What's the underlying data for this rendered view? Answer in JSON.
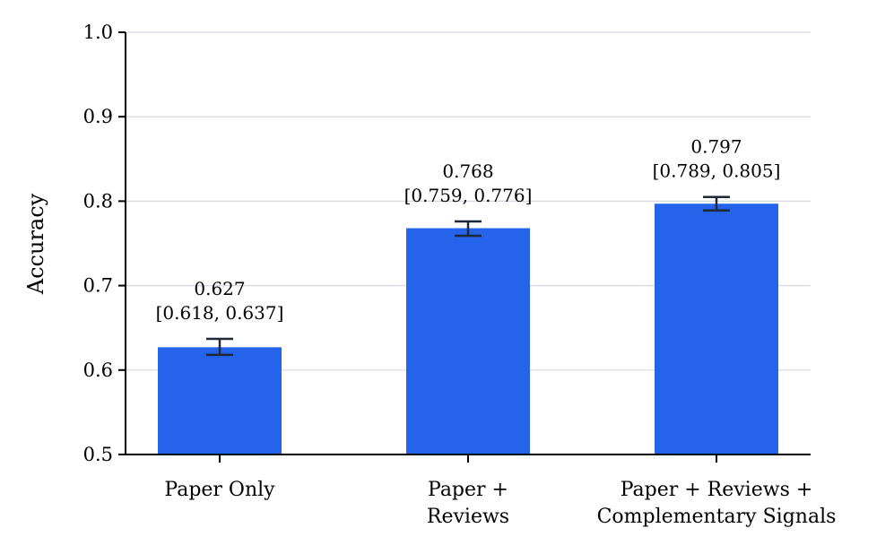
{
  "chart_data": {
    "type": "bar",
    "title": "",
    "xlabel": "",
    "ylabel": "Accuracy",
    "ylim": [
      0.5,
      1.0
    ],
    "yticks": [
      "0.5",
      "0.6",
      "0.7",
      "0.8",
      "0.9",
      "1.0"
    ],
    "grid": "horizontal",
    "categories": [
      [
        "Paper Only"
      ],
      [
        "Paper +",
        "Reviews"
      ],
      [
        "Paper + Reviews +",
        "Complementary Signals"
      ]
    ],
    "values": [
      0.627,
      0.768,
      0.797
    ],
    "ci_low": [
      0.618,
      0.759,
      0.789
    ],
    "ci_high": [
      0.637,
      0.776,
      0.805
    ],
    "value_labels": [
      "0.627",
      "0.768",
      "0.797"
    ],
    "ci_labels": [
      "[0.618, 0.637]",
      "[0.759, 0.776]",
      "[0.789, 0.805]"
    ],
    "colors": {
      "bar": "#2563eb",
      "error_bar": "#1f2937",
      "grid": "#d8d8e0",
      "axis": "#000000"
    }
  }
}
